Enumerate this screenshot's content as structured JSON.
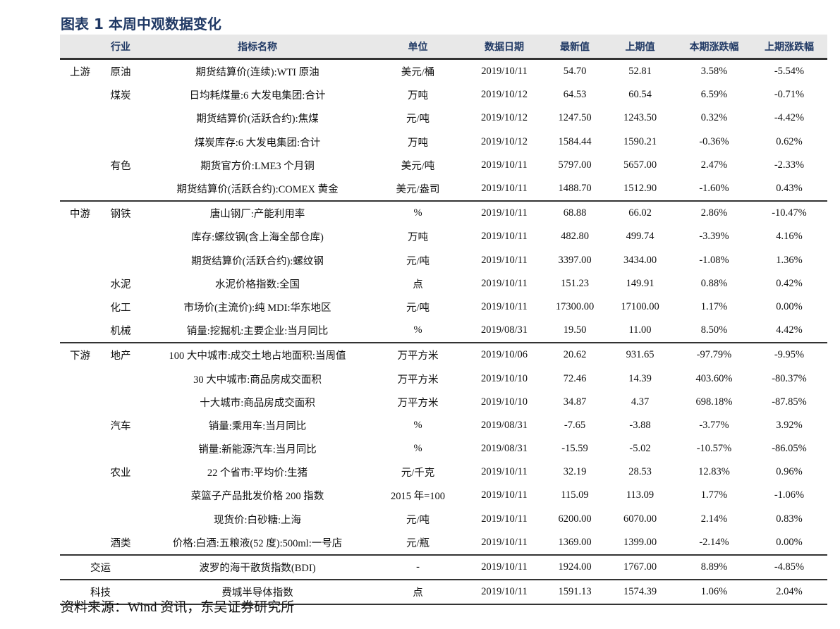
{
  "title": "图表 1 本周中观数据变化",
  "columns": [
    "",
    "行业",
    "指标名称",
    "单位",
    "数据日期",
    "最新值",
    "上期值",
    "本期涨跌幅",
    "上期涨跌幅"
  ],
  "rows": [
    {
      "group": "上游",
      "industry": "原油",
      "name": "期货结算价(连续):WTI 原油",
      "unit": "美元/桶",
      "date": "2019/10/11",
      "latest": "54.70",
      "prev": "52.81",
      "chg": "3.58%",
      "prev_chg": "-5.54%",
      "sep": false
    },
    {
      "group": "",
      "industry": "煤炭",
      "name": "日均耗煤量:6 大发电集团:合计",
      "unit": "万吨",
      "date": "2019/10/12",
      "latest": "64.53",
      "prev": "60.54",
      "chg": "6.59%",
      "prev_chg": "-0.71%"
    },
    {
      "group": "",
      "industry": "",
      "name": "期货结算价(活跃合约):焦煤",
      "unit": "元/吨",
      "date": "2019/10/12",
      "latest": "1247.50",
      "prev": "1243.50",
      "chg": "0.32%",
      "prev_chg": "-4.42%"
    },
    {
      "group": "",
      "industry": "",
      "name": "煤炭库存:6 大发电集团:合计",
      "unit": "万吨",
      "date": "2019/10/12",
      "latest": "1584.44",
      "prev": "1590.21",
      "chg": "-0.36%",
      "prev_chg": "0.62%"
    },
    {
      "group": "",
      "industry": "有色",
      "name": "期货官方价:LME3 个月铜",
      "unit": "美元/吨",
      "date": "2019/10/11",
      "latest": "5797.00",
      "prev": "5657.00",
      "chg": "2.47%",
      "prev_chg": "-2.33%"
    },
    {
      "group": "",
      "industry": "",
      "name": "期货结算价(活跃合约):COMEX 黄金",
      "unit": "美元/盎司",
      "date": "2019/10/11",
      "latest": "1488.70",
      "prev": "1512.90",
      "chg": "-1.60%",
      "prev_chg": "0.43%"
    },
    {
      "group": "中游",
      "industry": "钢铁",
      "name": "唐山钢厂:产能利用率",
      "unit": "%",
      "date": "2019/10/11",
      "latest": "68.88",
      "prev": "66.02",
      "chg": "2.86%",
      "prev_chg": "-10.47%",
      "sep": true
    },
    {
      "group": "",
      "industry": "",
      "name": "库存:螺纹钢(含上海全部仓库)",
      "unit": "万吨",
      "date": "2019/10/11",
      "latest": "482.80",
      "prev": "499.74",
      "chg": "-3.39%",
      "prev_chg": "4.16%"
    },
    {
      "group": "",
      "industry": "",
      "name": "期货结算价(活跃合约):螺纹钢",
      "unit": "元/吨",
      "date": "2019/10/11",
      "latest": "3397.00",
      "prev": "3434.00",
      "chg": "-1.08%",
      "prev_chg": "1.36%"
    },
    {
      "group": "",
      "industry": "水泥",
      "name": "水泥价格指数:全国",
      "unit": "点",
      "date": "2019/10/11",
      "latest": "151.23",
      "prev": "149.91",
      "chg": "0.88%",
      "prev_chg": "0.42%"
    },
    {
      "group": "",
      "industry": "化工",
      "name": "市场价(主流价):纯 MDI:华东地区",
      "unit": "元/吨",
      "date": "2019/10/11",
      "latest": "17300.00",
      "prev": "17100.00",
      "chg": "1.17%",
      "prev_chg": "0.00%"
    },
    {
      "group": "",
      "industry": "机械",
      "name": "销量:挖掘机:主要企业:当月同比",
      "unit": "%",
      "date": "2019/08/31",
      "latest": "19.50",
      "prev": "11.00",
      "chg": "8.50%",
      "prev_chg": "4.42%"
    },
    {
      "group": "下游",
      "industry": "地产",
      "name": "100 大中城市:成交土地占地面积:当周值",
      "unit": "万平方米",
      "date": "2019/10/06",
      "latest": "20.62",
      "prev": "931.65",
      "chg": "-97.79%",
      "prev_chg": "-9.95%",
      "sep": true
    },
    {
      "group": "",
      "industry": "",
      "name": "30 大中城市:商品房成交面积",
      "unit": "万平方米",
      "date": "2019/10/10",
      "latest": "72.46",
      "prev": "14.39",
      "chg": "403.60%",
      "prev_chg": "-80.37%"
    },
    {
      "group": "",
      "industry": "",
      "name": "十大城市:商品房成交面积",
      "unit": "万平方米",
      "date": "2019/10/10",
      "latest": "34.87",
      "prev": "4.37",
      "chg": "698.18%",
      "prev_chg": "-87.85%"
    },
    {
      "group": "",
      "industry": "汽车",
      "name": "销量:乘用车:当月同比",
      "unit": "%",
      "date": "2019/08/31",
      "latest": "-7.65",
      "prev": "-3.88",
      "chg": "-3.77%",
      "prev_chg": "3.92%"
    },
    {
      "group": "",
      "industry": "",
      "name": "销量:新能源汽车:当月同比",
      "unit": "%",
      "date": "2019/08/31",
      "latest": "-15.59",
      "prev": "-5.02",
      "chg": "-10.57%",
      "prev_chg": "-86.05%"
    },
    {
      "group": "",
      "industry": "农业",
      "name": "22 个省市:平均价:生猪",
      "unit": "元/千克",
      "date": "2019/10/11",
      "latest": "32.19",
      "prev": "28.53",
      "chg": "12.83%",
      "prev_chg": "0.96%"
    },
    {
      "group": "",
      "industry": "",
      "name": "菜篮子产品批发价格 200 指数",
      "unit": "2015 年=100",
      "date": "2019/10/11",
      "latest": "115.09",
      "prev": "113.09",
      "chg": "1.77%",
      "prev_chg": "-1.06%"
    },
    {
      "group": "",
      "industry": "",
      "name": "现货价:白砂糖:上海",
      "unit": "元/吨",
      "date": "2019/10/11",
      "latest": "6200.00",
      "prev": "6070.00",
      "chg": "2.14%",
      "prev_chg": "0.83%"
    },
    {
      "group": "",
      "industry": "酒类",
      "name": "价格:白酒:五粮液(52 度):500ml:一号店",
      "unit": "元/瓶",
      "date": "2019/10/11",
      "latest": "1369.00",
      "prev": "1399.00",
      "chg": "-2.14%",
      "prev_chg": "0.00%"
    },
    {
      "group": "交运",
      "industry": "",
      "name": "波罗的海干散货指数(BDI)",
      "unit": "-",
      "date": "2019/10/11",
      "latest": "1924.00",
      "prev": "1767.00",
      "chg": "8.89%",
      "prev_chg": "-4.85%",
      "sep": true,
      "merged": true
    },
    {
      "group": "科技",
      "industry": "",
      "name": "费城半导体指数",
      "unit": "点",
      "date": "2019/10/11",
      "latest": "1591.13",
      "prev": "1574.39",
      "chg": "1.06%",
      "prev_chg": "2.04%",
      "sep": true,
      "merged": true
    }
  ],
  "footer": "资料来源：Wind 资讯，东吴证券研究所"
}
